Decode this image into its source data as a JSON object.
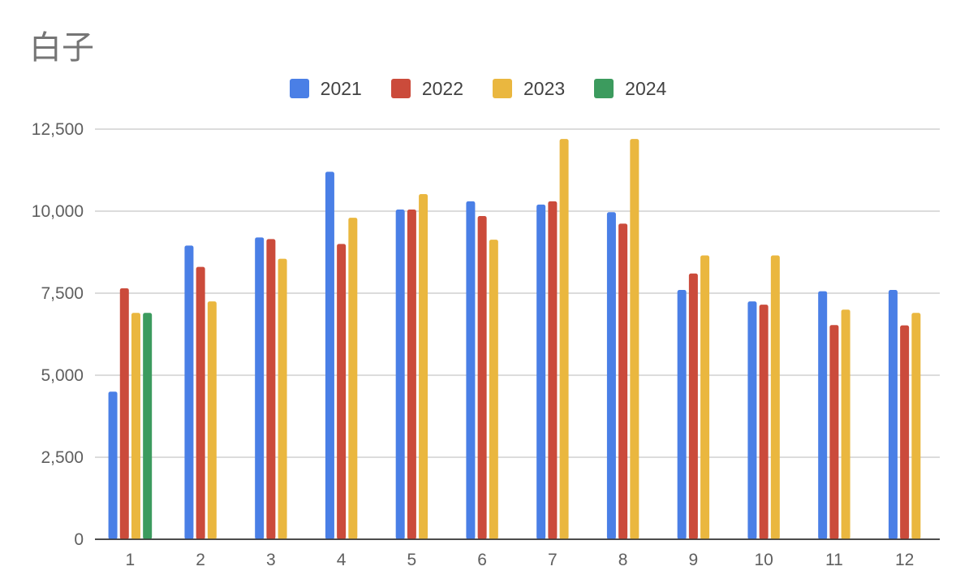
{
  "chart_data": {
    "type": "bar",
    "title": "白子",
    "xlabel": "",
    "ylabel": "",
    "categories": [
      "1",
      "2",
      "3",
      "4",
      "5",
      "6",
      "7",
      "8",
      "9",
      "10",
      "11",
      "12"
    ],
    "series": [
      {
        "name": "2021",
        "color": "#4a7fe6",
        "values": [
          4500,
          8950,
          9200,
          11200,
          10050,
          10300,
          10200,
          9970,
          7600,
          7250,
          7560,
          7600
        ]
      },
      {
        "name": "2022",
        "color": "#cb4b3b",
        "values": [
          7650,
          8300,
          9150,
          9000,
          10050,
          9850,
          10300,
          9620,
          8100,
          7150,
          6530,
          6520
        ]
      },
      {
        "name": "2023",
        "color": "#eab73f",
        "values": [
          6900,
          7250,
          8550,
          9800,
          10520,
          9130,
          12200,
          12200,
          8650,
          8650,
          7000,
          6900
        ]
      },
      {
        "name": "2024",
        "color": "#3c9b5e",
        "values": [
          6900,
          null,
          null,
          null,
          null,
          null,
          null,
          null,
          null,
          null,
          null,
          null
        ]
      }
    ],
    "ylim": [
      0,
      12500
    ],
    "yticks": [
      0,
      2500,
      5000,
      7500,
      10000,
      12500
    ],
    "ytick_labels": [
      "0",
      "2,500",
      "5,000",
      "7,500",
      "10,000",
      "12,500"
    ],
    "grid": true,
    "legend_position": "top"
  }
}
